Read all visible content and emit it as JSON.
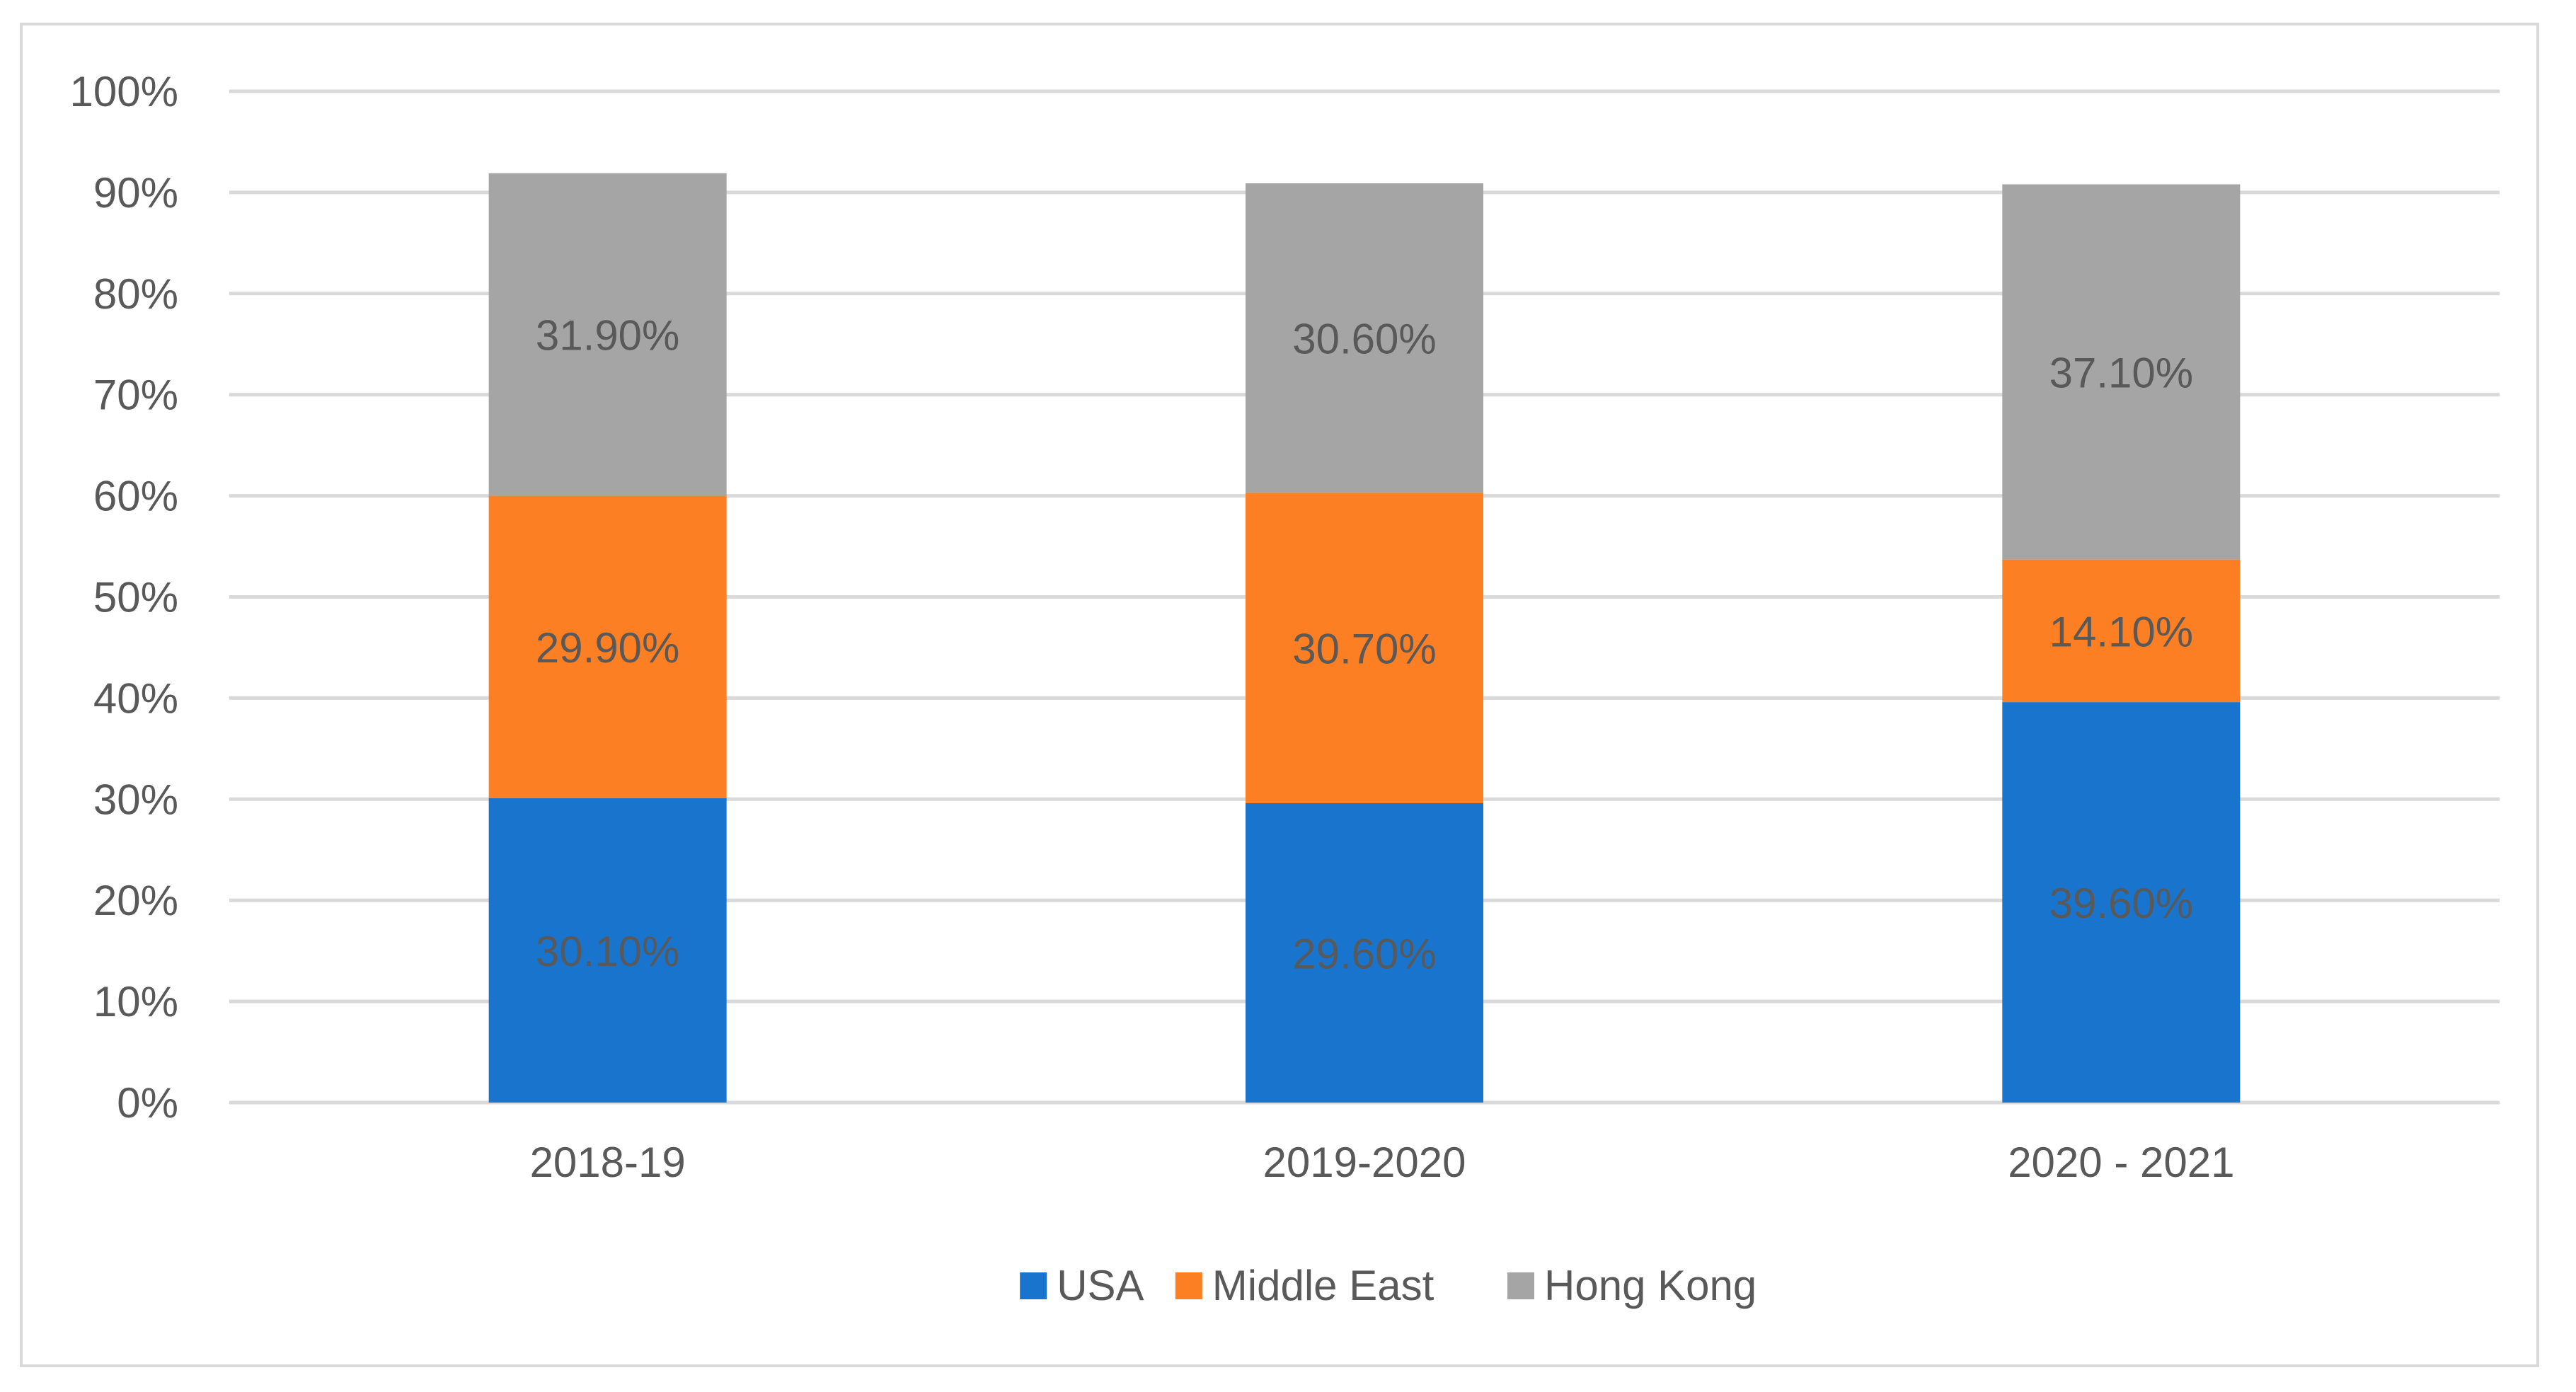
{
  "chart_data": {
    "type": "bar",
    "stacked": true,
    "title": "",
    "xlabel": "",
    "ylabel": "",
    "ylim": [
      0,
      100
    ],
    "yticks": [
      "0%",
      "10%",
      "20%",
      "30%",
      "40%",
      "50%",
      "60%",
      "70%",
      "80%",
      "90%",
      "100%"
    ],
    "grid": true,
    "legend_position": "bottom",
    "categories": [
      "2018-19",
      "2019-2020",
      "2020 - 2021"
    ],
    "series": [
      {
        "name": "USA",
        "color": "#1874cd",
        "values": [
          30.1,
          29.6,
          39.6
        ],
        "labels": [
          "30.10%",
          "29.60%",
          "39.60%"
        ]
      },
      {
        "name": "Middle East",
        "color": "#fd7f23",
        "values": [
          29.9,
          30.7,
          14.1
        ],
        "labels": [
          "29.90%",
          "30.70%",
          "14.10%"
        ]
      },
      {
        "name": "Hong Kong",
        "color": "#a5a5a5",
        "values": [
          31.9,
          30.6,
          37.1
        ],
        "labels": [
          "31.90%",
          "30.60%",
          "37.10%"
        ]
      }
    ],
    "label_color": "#595959",
    "axis_text_color": "#595959",
    "gridline_color": "#d9d9d9"
  }
}
